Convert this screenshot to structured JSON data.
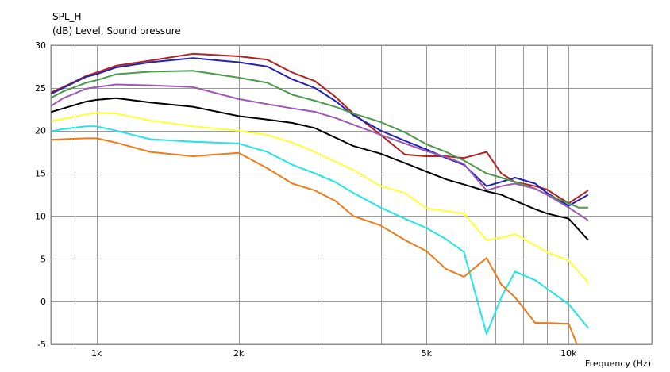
{
  "chart_data": {
    "type": "line",
    "title": "SPL_H",
    "ylabel": "(dB)  Level, Sound pressure",
    "xlabel": "Frequency  (Hz)",
    "x_scale": "log",
    "xlim": [
      800,
      15000
    ],
    "ylim": [
      -5,
      30
    ],
    "grid": true,
    "y_ticks": [
      -5,
      0,
      5,
      10,
      15,
      20,
      25,
      30
    ],
    "x_tick_labels": [
      {
        "value": 1000,
        "label": "1k"
      },
      {
        "value": 2000,
        "label": "2k"
      },
      {
        "value": 5000,
        "label": "5k"
      },
      {
        "value": 10000,
        "label": "10k"
      }
    ],
    "x_grid": [
      800,
      900,
      1000,
      2000,
      3000,
      4000,
      5000,
      6000,
      7000,
      8000,
      9000,
      10000,
      15000
    ],
    "series": [
      {
        "color": "#b22222",
        "points": [
          [
            700,
            22.5
          ],
          [
            780,
            24.2
          ],
          [
            850,
            25.1
          ],
          [
            950,
            26.4
          ],
          [
            1000,
            26.8
          ],
          [
            1100,
            27.6
          ],
          [
            1300,
            28.2
          ],
          [
            1600,
            29.0
          ],
          [
            2000,
            28.7
          ],
          [
            2300,
            28.3
          ],
          [
            2600,
            26.8
          ],
          [
            2900,
            25.8
          ],
          [
            3200,
            24.0
          ],
          [
            3500,
            22.0
          ],
          [
            4000,
            19.5
          ],
          [
            4500,
            17.2
          ],
          [
            5000,
            17.0
          ],
          [
            5500,
            17.0
          ],
          [
            6000,
            16.8
          ],
          [
            6700,
            17.5
          ],
          [
            7200,
            15.0
          ],
          [
            7700,
            14.0
          ],
          [
            8500,
            13.5
          ],
          [
            9000,
            13.1
          ],
          [
            10000,
            11.5
          ],
          [
            11000,
            13.0
          ]
        ]
      },
      {
        "color": "#2222bb",
        "points": [
          [
            700,
            22.5
          ],
          [
            780,
            24.0
          ],
          [
            850,
            25.0
          ],
          [
            950,
            26.3
          ],
          [
            1000,
            26.6
          ],
          [
            1100,
            27.4
          ],
          [
            1300,
            28.0
          ],
          [
            1600,
            28.5
          ],
          [
            2000,
            28.0
          ],
          [
            2300,
            27.5
          ],
          [
            2600,
            26.0
          ],
          [
            2900,
            25.0
          ],
          [
            3200,
            23.5
          ],
          [
            3500,
            21.8
          ],
          [
            4000,
            20.0
          ],
          [
            4500,
            18.8
          ],
          [
            5000,
            17.8
          ],
          [
            5500,
            16.8
          ],
          [
            6000,
            16.0
          ],
          [
            6700,
            13.5
          ],
          [
            7200,
            14.0
          ],
          [
            7700,
            14.5
          ],
          [
            8500,
            13.8
          ],
          [
            9000,
            12.7
          ],
          [
            10000,
            11.2
          ],
          [
            11000,
            12.5
          ]
        ]
      },
      {
        "color": "#4a9a4a",
        "points": [
          [
            700,
            22.0
          ],
          [
            780,
            23.5
          ],
          [
            850,
            24.6
          ],
          [
            950,
            25.6
          ],
          [
            1000,
            25.9
          ],
          [
            1100,
            26.6
          ],
          [
            1300,
            26.9
          ],
          [
            1600,
            27.0
          ],
          [
            2000,
            26.2
          ],
          [
            2300,
            25.6
          ],
          [
            2600,
            24.2
          ],
          [
            2900,
            23.5
          ],
          [
            3200,
            22.8
          ],
          [
            3500,
            22.0
          ],
          [
            4000,
            21.0
          ],
          [
            4500,
            19.8
          ],
          [
            5000,
            18.4
          ],
          [
            5500,
            17.5
          ],
          [
            6000,
            16.5
          ],
          [
            6700,
            15.0
          ],
          [
            7200,
            14.5
          ],
          [
            7700,
            14.0
          ],
          [
            8500,
            13.2
          ],
          [
            9000,
            12.5
          ],
          [
            10000,
            11.5
          ],
          [
            10500,
            11.0
          ],
          [
            11000,
            11.0
          ]
        ]
      },
      {
        "color": "#9b59b6",
        "points": [
          [
            700,
            21.0
          ],
          [
            780,
            22.5
          ],
          [
            850,
            23.8
          ],
          [
            950,
            24.9
          ],
          [
            1000,
            25.1
          ],
          [
            1100,
            25.4
          ],
          [
            1300,
            25.3
          ],
          [
            1600,
            25.1
          ],
          [
            2000,
            23.7
          ],
          [
            2300,
            23.1
          ],
          [
            2600,
            22.6
          ],
          [
            2900,
            22.2
          ],
          [
            3200,
            21.5
          ],
          [
            3500,
            20.7
          ],
          [
            4000,
            19.5
          ],
          [
            4500,
            18.5
          ],
          [
            5000,
            17.6
          ],
          [
            5500,
            16.9
          ],
          [
            6000,
            16.1
          ],
          [
            6700,
            13.0
          ],
          [
            7200,
            13.5
          ],
          [
            7700,
            13.8
          ],
          [
            8500,
            13.2
          ],
          [
            9000,
            12.5
          ],
          [
            10000,
            11.0
          ],
          [
            11000,
            9.5
          ]
        ]
      },
      {
        "color": "#000000",
        "points": [
          [
            700,
            20.5
          ],
          [
            780,
            22.0
          ],
          [
            850,
            22.6
          ],
          [
            950,
            23.4
          ],
          [
            1000,
            23.6
          ],
          [
            1100,
            23.8
          ],
          [
            1300,
            23.3
          ],
          [
            1600,
            22.8
          ],
          [
            2000,
            21.7
          ],
          [
            2300,
            21.3
          ],
          [
            2600,
            20.9
          ],
          [
            2900,
            20.3
          ],
          [
            3200,
            19.2
          ],
          [
            3500,
            18.2
          ],
          [
            4000,
            17.3
          ],
          [
            4500,
            16.2
          ],
          [
            5000,
            15.2
          ],
          [
            5500,
            14.3
          ],
          [
            6000,
            13.7
          ],
          [
            6700,
            12.9
          ],
          [
            7200,
            12.5
          ],
          [
            7700,
            11.8
          ],
          [
            8500,
            10.8
          ],
          [
            9000,
            10.3
          ],
          [
            10000,
            9.7
          ],
          [
            11000,
            7.2
          ]
        ]
      },
      {
        "color": "#ffff33",
        "points": [
          [
            700,
            19.5
          ],
          [
            780,
            21.0
          ],
          [
            850,
            21.4
          ],
          [
            950,
            21.9
          ],
          [
            1000,
            22.1
          ],
          [
            1100,
            22.0
          ],
          [
            1300,
            21.2
          ],
          [
            1600,
            20.5
          ],
          [
            2000,
            20.0
          ],
          [
            2300,
            19.5
          ],
          [
            2600,
            18.6
          ],
          [
            2900,
            17.5
          ],
          [
            3200,
            16.4
          ],
          [
            3500,
            15.4
          ],
          [
            4000,
            13.5
          ],
          [
            4500,
            12.7
          ],
          [
            5000,
            10.9
          ],
          [
            5500,
            10.6
          ],
          [
            6000,
            10.3
          ],
          [
            6700,
            7.2
          ],
          [
            7200,
            7.5
          ],
          [
            7700,
            7.9
          ],
          [
            8500,
            6.6
          ],
          [
            9000,
            5.8
          ],
          [
            10000,
            4.8
          ],
          [
            11000,
            2.2
          ]
        ]
      },
      {
        "color": "#22e5e5",
        "points": [
          [
            700,
            18.5
          ],
          [
            780,
            19.8
          ],
          [
            850,
            20.2
          ],
          [
            950,
            20.5
          ],
          [
            1000,
            20.5
          ],
          [
            1100,
            20.0
          ],
          [
            1300,
            19.0
          ],
          [
            1600,
            18.7
          ],
          [
            2000,
            18.5
          ],
          [
            2300,
            17.5
          ],
          [
            2600,
            16.0
          ],
          [
            2900,
            15.0
          ],
          [
            3200,
            14.0
          ],
          [
            3500,
            12.7
          ],
          [
            4000,
            11.0
          ],
          [
            4500,
            9.7
          ],
          [
            5000,
            8.6
          ],
          [
            5500,
            7.3
          ],
          [
            6000,
            5.8
          ],
          [
            6700,
            -3.8
          ],
          [
            7200,
            0.5
          ],
          [
            7700,
            3.5
          ],
          [
            8500,
            2.5
          ],
          [
            9000,
            1.5
          ],
          [
            10000,
            -0.3
          ],
          [
            11000,
            -3.1
          ]
        ]
      },
      {
        "color": "#ee7a1a",
        "points": [
          [
            700,
            17.5
          ],
          [
            780,
            18.9
          ],
          [
            850,
            19.0
          ],
          [
            950,
            19.1
          ],
          [
            1000,
            19.1
          ],
          [
            1100,
            18.6
          ],
          [
            1300,
            17.5
          ],
          [
            1600,
            17.0
          ],
          [
            2000,
            17.4
          ],
          [
            2300,
            15.6
          ],
          [
            2600,
            13.8
          ],
          [
            2900,
            13.0
          ],
          [
            3200,
            11.8
          ],
          [
            3500,
            10.0
          ],
          [
            4000,
            8.9
          ],
          [
            4500,
            7.2
          ],
          [
            5000,
            5.9
          ],
          [
            5500,
            3.8
          ],
          [
            6000,
            2.9
          ],
          [
            6700,
            5.1
          ],
          [
            7200,
            2.0
          ],
          [
            7700,
            0.5
          ],
          [
            8500,
            -2.5
          ],
          [
            9000,
            -2.5
          ],
          [
            10000,
            -2.6
          ],
          [
            10500,
            -5.5
          ]
        ]
      }
    ]
  }
}
